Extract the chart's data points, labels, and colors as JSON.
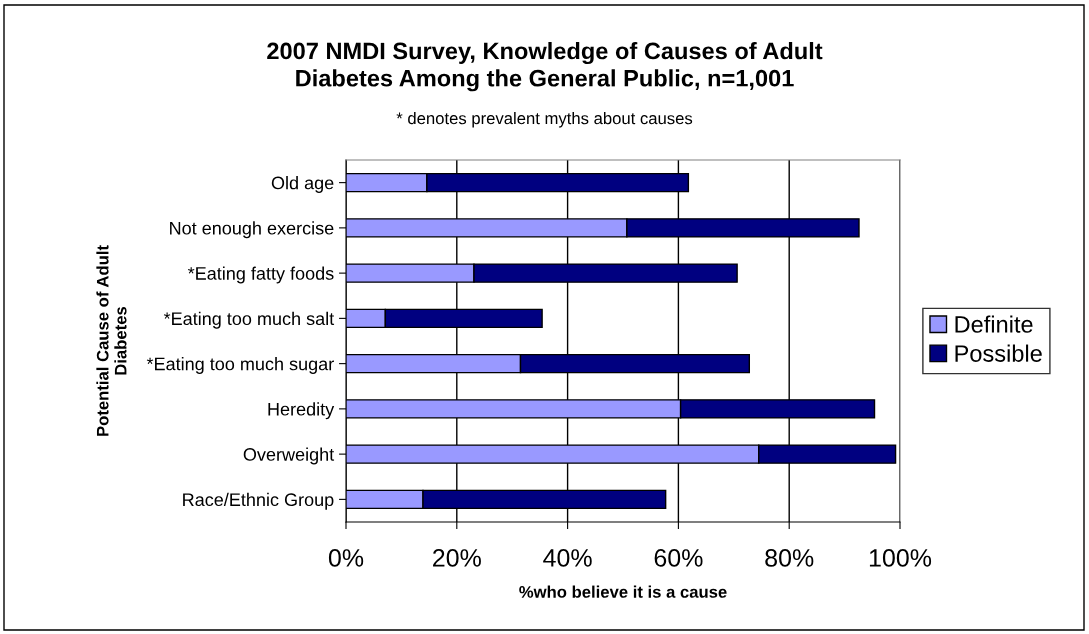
{
  "chart_data": {
    "type": "bar",
    "orientation": "horizontal",
    "stacked": true,
    "title": "2007 NMDI Survey, Knowledge of Causes of Adult\nDiabetes Among the General Public, n=1,001",
    "subtitle": "* denotes prevalent myths about causes",
    "xlabel": "%who believe it is a cause",
    "ylabel": "Potential Cause of Adult\nDiabetes",
    "categories": [
      "Old age",
      "Not enough exercise",
      "*Eating fatty foods",
      "*Eating too much salt",
      "*Eating too much sugar",
      "Heredity",
      "Overweight",
      "Race/Ethnic Group"
    ],
    "series": [
      {
        "name": "Definite",
        "color": "#9999ff",
        "values": [
          14.6,
          50.7,
          23.1,
          7.1,
          31.5,
          60.4,
          74.5,
          13.9
        ]
      },
      {
        "name": "Possible",
        "color": "#000080",
        "values": [
          47.2,
          41.9,
          47.5,
          28.3,
          41.3,
          35.0,
          24.7,
          43.8
        ]
      }
    ],
    "xlim": [
      0,
      100
    ],
    "xticks": [
      {
        "value": 0,
        "label": "0%"
      },
      {
        "value": 20,
        "label": "20%"
      },
      {
        "value": 40,
        "label": "40%"
      },
      {
        "value": 60,
        "label": "60%"
      },
      {
        "value": 80,
        "label": "80%"
      },
      {
        "value": 100,
        "label": "100%"
      }
    ],
    "grid": "x",
    "legend": "right"
  }
}
